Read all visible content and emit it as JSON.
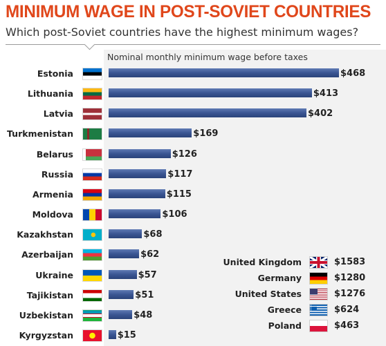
{
  "title": "MINIMUM WAGE IN POST-SOVIET COUNTRIES",
  "subtitle": "Which post-Soviet countries have the highest minimum wages?",
  "chart_data": {
    "type": "bar",
    "orientation": "horizontal",
    "xlabel": "Nominal monthly minimum wage before taxes",
    "unit": "$",
    "bar_color": "#3b5693",
    "title_color": "#e0471b",
    "categories": [
      "Estonia",
      "Lithuania",
      "Latvia",
      "Turkmenistan",
      "Belarus",
      "Russia",
      "Armenia",
      "Moldova",
      "Kazakhstan",
      "Azerbaijan",
      "Ukraine",
      "Tajikistan",
      "Uzbekistan",
      "Kyrgyzstan"
    ],
    "values": [
      468,
      413,
      402,
      169,
      126,
      117,
      115,
      106,
      68,
      62,
      57,
      51,
      48,
      15
    ],
    "value_labels": [
      "$468",
      "$413",
      "$402",
      "$169",
      "$126",
      "$117",
      "$115",
      "$106",
      "$68",
      "$62",
      "$57",
      "$51",
      "$48",
      "$15"
    ],
    "flag_icons": [
      "estonia-flag-icon",
      "lithuania-flag-icon",
      "latvia-flag-icon",
      "turkmenistan-flag-icon",
      "belarus-flag-icon",
      "russia-flag-icon",
      "armenia-flag-icon",
      "moldova-flag-icon",
      "kazakhstan-flag-icon",
      "azerbaijan-flag-icon",
      "ukraine-flag-icon",
      "tajikistan-flag-icon",
      "uzbekistan-flag-icon",
      "kyrgyzstan-flag-icon"
    ],
    "comparison": {
      "countries": [
        "United Kingdom",
        "Germany",
        "United States",
        "Greece",
        "Poland"
      ],
      "values": [
        1583,
        1280,
        1276,
        624,
        463
      ],
      "value_labels": [
        "$1583",
        "$1280",
        "$1276",
        "$624",
        "$463"
      ],
      "flag_icons": [
        "uk-flag-icon",
        "germany-flag-icon",
        "usa-flag-icon",
        "greece-flag-icon",
        "poland-flag-icon"
      ]
    }
  }
}
